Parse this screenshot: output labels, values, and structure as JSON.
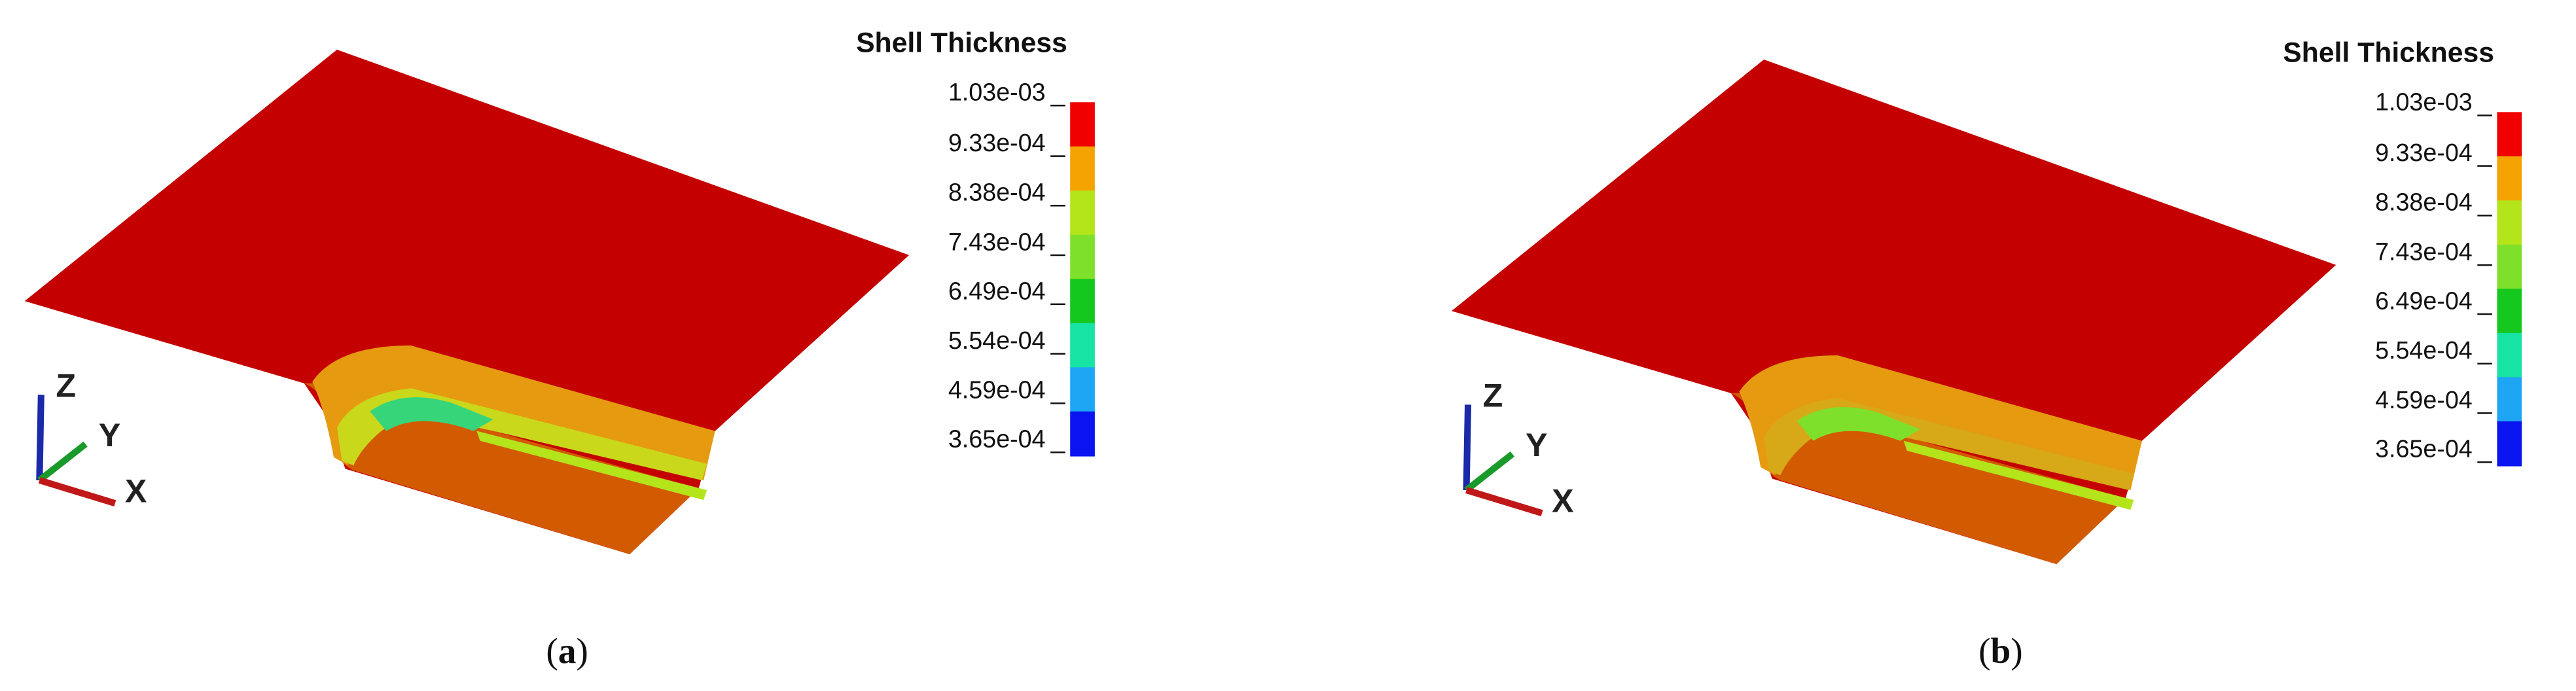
{
  "panels": [
    {
      "caption": "(a)",
      "legend": {
        "title": "Shell Thickness",
        "ticks": [
          {
            "value": 0.00103,
            "label": "1.03e-03"
          },
          {
            "value": 0.000933,
            "label": "9.33e-04"
          },
          {
            "value": 0.000838,
            "label": "8.38e-04"
          },
          {
            "value": 0.000743,
            "label": "7.43e-04"
          },
          {
            "value": 0.000649,
            "label": "6.49e-04"
          },
          {
            "value": 0.000554,
            "label": "5.54e-04"
          },
          {
            "value": 0.000459,
            "label": "4.59e-04"
          },
          {
            "value": 0.000365,
            "label": "3.65e-04"
          }
        ],
        "colors": [
          "#f00000",
          "#f5a300",
          "#b4e41a",
          "#7ee02a",
          "#14c81e",
          "#16e3a4",
          "#1ea6f5",
          "#0a14f0"
        ]
      },
      "triad": [
        "Z",
        "Y",
        "X"
      ]
    },
    {
      "caption": "(b)",
      "legend": {
        "title": "Shell Thickness",
        "ticks": [
          {
            "value": 0.00103,
            "label": "1.03e-03"
          },
          {
            "value": 0.000933,
            "label": "9.33e-04"
          },
          {
            "value": 0.000838,
            "label": "8.38e-04"
          },
          {
            "value": 0.000743,
            "label": "7.43e-04"
          },
          {
            "value": 0.000649,
            "label": "6.49e-04"
          },
          {
            "value": 0.000554,
            "label": "5.54e-04"
          },
          {
            "value": 0.000459,
            "label": "4.59e-04"
          },
          {
            "value": 0.000365,
            "label": "3.65e-04"
          }
        ],
        "colors": [
          "#f00000",
          "#f5a300",
          "#b4e41a",
          "#7ee02a",
          "#14c81e",
          "#16e3a4",
          "#1ea6f5",
          "#0a14f0"
        ]
      },
      "triad": [
        "Z",
        "Y",
        "X"
      ]
    }
  ]
}
